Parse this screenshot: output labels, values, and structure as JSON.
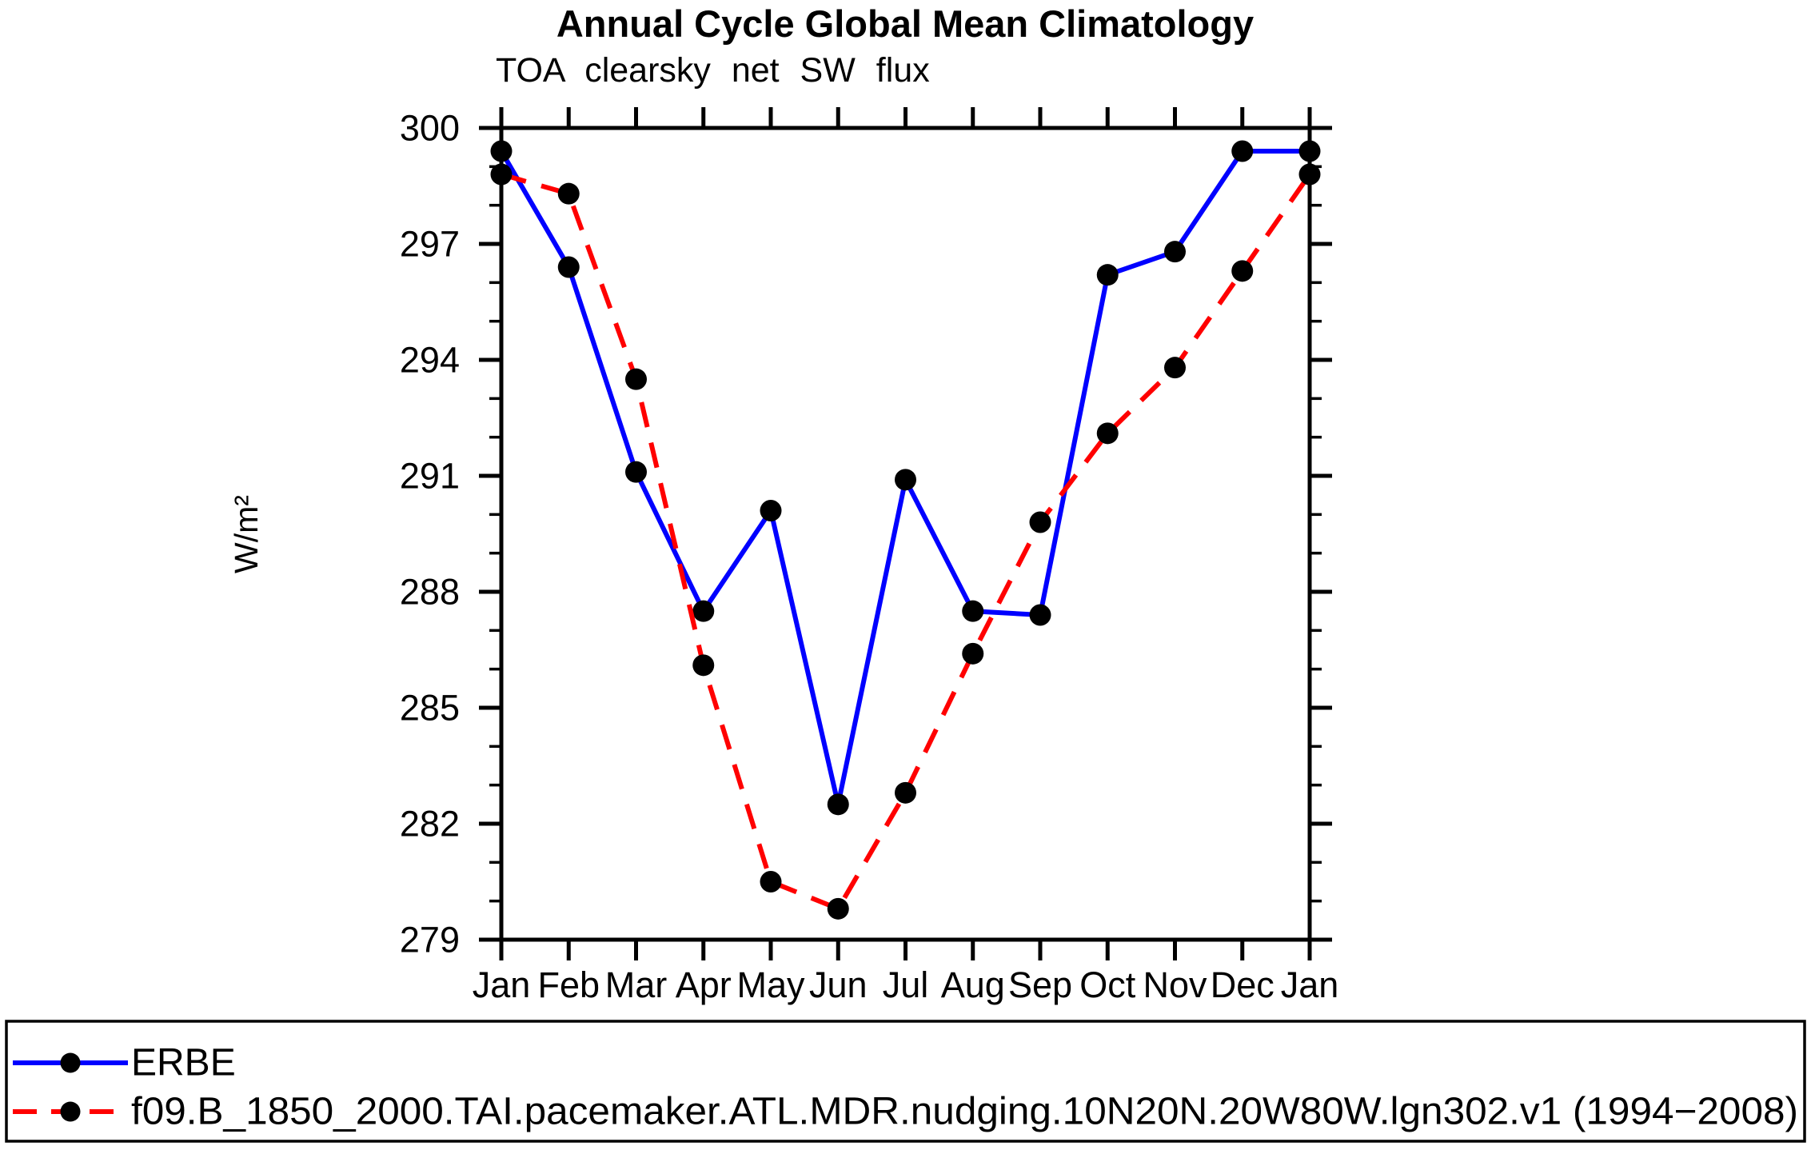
{
  "chart_data": {
    "type": "line",
    "title": "Annual Cycle Global Mean Climatology",
    "subtitle": "TOA clearsky net SW flux",
    "ylabel": "W/m²",
    "xlabel": "",
    "categories": [
      "Jan",
      "Feb",
      "Mar",
      "Apr",
      "May",
      "Jun",
      "Jul",
      "Aug",
      "Sep",
      "Oct",
      "Nov",
      "Dec",
      "Jan"
    ],
    "ylim": [
      279,
      300
    ],
    "ytick_major_step": 3,
    "ytick_minor_step": 1,
    "ytick_labels": [
      "279",
      "282",
      "285",
      "288",
      "291",
      "294",
      "297",
      "300"
    ],
    "grid": false,
    "legend_position": "bottom-box",
    "colors": {
      "erbe_line": "#0000ff",
      "model_line": "#ff0000",
      "marker": "#000000",
      "axis": "#000000",
      "background": "#ffffff"
    },
    "series": [
      {
        "name": "ERBE",
        "color": "#0000ff",
        "style": "solid",
        "marker": "circle",
        "marker_color": "#000000",
        "values": [
          299.4,
          296.4,
          291.1,
          287.5,
          290.1,
          282.5,
          290.9,
          287.5,
          287.4,
          296.2,
          296.8,
          299.4,
          299.4
        ]
      },
      {
        "name": "f09.B_1850_2000.TAI.pacemaker.ATL.MDR.nudging.10N20N.20W80W.lgn302.v1 (1994−2008)",
        "color": "#ff0000",
        "style": "dashed",
        "marker": "circle",
        "marker_color": "#000000",
        "values": [
          298.8,
          298.3,
          293.5,
          286.1,
          280.5,
          279.8,
          282.8,
          286.4,
          289.8,
          292.1,
          293.8,
          296.3,
          298.8
        ]
      }
    ]
  }
}
